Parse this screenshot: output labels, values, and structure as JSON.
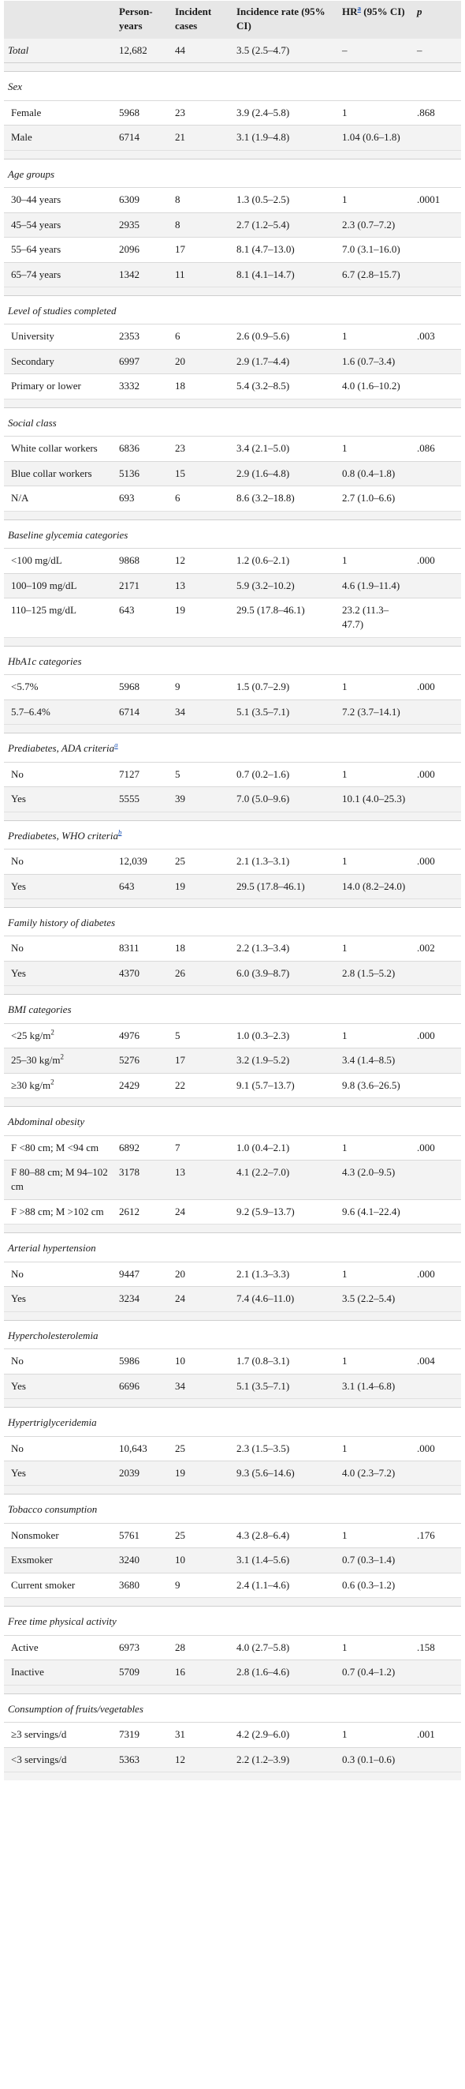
{
  "header": {
    "col_group": "",
    "col_person_years": "Person-years",
    "col_incident": "Incident cases",
    "col_rate": "Incidence rate (95% CI)",
    "col_hr": "HR",
    "col_hr_sup": "a",
    "col_hr_rest": " (95% CI)",
    "col_p": "p"
  },
  "total": {
    "label": "Total",
    "person_years": "12,682",
    "cases": "44",
    "rate": "3.5 (2.5–4.7)",
    "hr": "–",
    "p": "–"
  },
  "sections": [
    {
      "title": "Sex",
      "rows": [
        {
          "label": "Female",
          "person_years": "5968",
          "cases": "23",
          "rate": "3.9 (2.4–5.8)",
          "hr": "1",
          "p": ".868"
        },
        {
          "label": "Male",
          "person_years": "6714",
          "cases": "21",
          "rate": "3.1 (1.9–4.8)",
          "hr": "1.04 (0.6–1.8)",
          "p": ""
        }
      ]
    },
    {
      "title": "Age groups",
      "rows": [
        {
          "label": "30–44 years",
          "person_years": "6309",
          "cases": "8",
          "rate": "1.3 (0.5–2.5)",
          "hr": "1",
          "p": ".0001"
        },
        {
          "label": "45–54 years",
          "person_years": "2935",
          "cases": "8",
          "rate": "2.7 (1.2–5.4)",
          "hr": "2.3 (0.7–7.2)",
          "p": ""
        },
        {
          "label": "55–64 years",
          "person_years": "2096",
          "cases": "17",
          "rate": "8.1 (4.7–13.0)",
          "hr": "7.0 (3.1–16.0)",
          "p": ""
        },
        {
          "label": "65–74 years",
          "person_years": "1342",
          "cases": "11",
          "rate": "8.1 (4.1–14.7)",
          "hr": "6.7 (2.8–15.7)",
          "p": ""
        }
      ]
    },
    {
      "title": "Level of studies completed",
      "rows": [
        {
          "label": "University",
          "person_years": "2353",
          "cases": "6",
          "rate": "2.6 (0.9–5.6)",
          "hr": "1",
          "p": ".003"
        },
        {
          "label": "Secondary",
          "person_years": "6997",
          "cases": "20",
          "rate": "2.9 (1.7–4.4)",
          "hr": "1.6 (0.7–3.4)",
          "p": ""
        },
        {
          "label": "Primary or lower",
          "person_years": "3332",
          "cases": "18",
          "rate": "5.4 (3.2–8.5)",
          "hr": "4.0 (1.6–10.2)",
          "p": ""
        }
      ]
    },
    {
      "title": "Social class",
      "rows": [
        {
          "label": "White collar workers",
          "person_years": "6836",
          "cases": "23",
          "rate": "3.4 (2.1–5.0)",
          "hr": "1",
          "p": ".086"
        },
        {
          "label": "Blue collar workers",
          "person_years": "5136",
          "cases": "15",
          "rate": "2.9 (1.6–4.8)",
          "hr": "0.8 (0.4–1.8)",
          "p": ""
        },
        {
          "label": "N/A",
          "person_years": "693",
          "cases": "6",
          "rate": "8.6 (3.2–18.8)",
          "hr": "2.7 (1.0–6.6)",
          "p": ""
        }
      ]
    },
    {
      "title": "Baseline glycemia categories",
      "rows": [
        {
          "label": "<100 mg/dL",
          "person_years": "9868",
          "cases": "12",
          "rate": "1.2 (0.6–2.1)",
          "hr": "1",
          "p": ".000"
        },
        {
          "label": "100–109 mg/dL",
          "person_years": "2171",
          "cases": "13",
          "rate": "5.9 (3.2–10.2)",
          "hr": "4.6 (1.9–11.4)",
          "p": ""
        },
        {
          "label": "110–125 mg/dL",
          "person_years": "643",
          "cases": "19",
          "rate": "29.5 (17.8–46.1)",
          "hr": "23.2 (11.3–47.7)",
          "p": ""
        }
      ]
    },
    {
      "title": "HbA1c categories",
      "rows": [
        {
          "label": "<5.7%",
          "person_years": "5968",
          "cases": "9",
          "rate": "1.5 (0.7–2.9)",
          "hr": "1",
          "p": ".000"
        },
        {
          "label": "5.7–6.4%",
          "person_years": "6714",
          "cases": "34",
          "rate": "5.1 (3.5–7.1)",
          "hr": "7.2 (3.7–14.1)",
          "p": ""
        }
      ]
    },
    {
      "title": "Prediabetes, ADA criteria",
      "title_sup": "a",
      "rows": [
        {
          "label": "No",
          "person_years": "7127",
          "cases": "5",
          "rate": "0.7 (0.2–1.6)",
          "hr": "1",
          "p": ".000"
        },
        {
          "label": "Yes",
          "person_years": "5555",
          "cases": "39",
          "rate": "7.0 (5.0–9.6)",
          "hr": "10.1 (4.0–25.3)",
          "p": ""
        }
      ]
    },
    {
      "title": "Prediabetes, WHO criteria",
      "title_sup": "b",
      "rows": [
        {
          "label": "No",
          "person_years": "12,039",
          "cases": "25",
          "rate": "2.1 (1.3–3.1)",
          "hr": "1",
          "p": ".000"
        },
        {
          "label": "Yes",
          "person_years": "643",
          "cases": "19",
          "rate": "29.5 (17.8–46.1)",
          "hr": "14.0 (8.2–24.0)",
          "p": ""
        }
      ]
    },
    {
      "title": "Family history of diabetes",
      "rows": [
        {
          "label": "No",
          "person_years": "8311",
          "cases": "18",
          "rate": "2.2 (1.3–3.4)",
          "hr": "1",
          "p": ".002"
        },
        {
          "label": "Yes",
          "person_years": "4370",
          "cases": "26",
          "rate": "6.0 (3.9–8.7)",
          "hr": "2.8 (1.5–5.2)",
          "p": ""
        }
      ]
    },
    {
      "title": "BMI categories",
      "rows": [
        {
          "label": "<25 kg/m",
          "label_sup": "2",
          "person_years": "4976",
          "cases": "5",
          "rate": "1.0 (0.3–2.3)",
          "hr": "1",
          "p": ".000"
        },
        {
          "label": "25–30 kg/m",
          "label_sup": "2",
          "person_years": "5276",
          "cases": "17",
          "rate": "3.2 (1.9–5.2)",
          "hr": "3.4 (1.4–8.5)",
          "p": ""
        },
        {
          "label": "≥30 kg/m",
          "label_sup": "2",
          "person_years": "2429",
          "cases": "22",
          "rate": "9.1 (5.7–13.7)",
          "hr": "9.8 (3.6–26.5)",
          "p": ""
        }
      ]
    },
    {
      "title": "Abdominal obesity",
      "rows": [
        {
          "label": "F <80 cm; M <94 cm",
          "person_years": "6892",
          "cases": "7",
          "rate": "1.0 (0.4–2.1)",
          "hr": "1",
          "p": ".000"
        },
        {
          "label": "F 80–88 cm; M 94–102 cm",
          "person_years": "3178",
          "cases": "13",
          "rate": "4.1 (2.2–7.0)",
          "hr": "4.3 (2.0–9.5)",
          "p": ""
        },
        {
          "label": "F >88 cm; M >102 cm",
          "person_years": "2612",
          "cases": "24",
          "rate": "9.2 (5.9–13.7)",
          "hr": "9.6 (4.1–22.4)",
          "p": ""
        }
      ]
    },
    {
      "title": "Arterial hypertension",
      "rows": [
        {
          "label": "No",
          "person_years": "9447",
          "cases": "20",
          "rate": "2.1 (1.3–3.3)",
          "hr": "1",
          "p": ".000"
        },
        {
          "label": "Yes",
          "person_years": "3234",
          "cases": "24",
          "rate": "7.4 (4.6–11.0)",
          "hr": "3.5 (2.2–5.4)",
          "p": ""
        }
      ]
    },
    {
      "title": "Hypercholesterolemia",
      "rows": [
        {
          "label": "No",
          "person_years": "5986",
          "cases": "10",
          "rate": "1.7 (0.8–3.1)",
          "hr": "1",
          "p": ".004"
        },
        {
          "label": "Yes",
          "person_years": "6696",
          "cases": "34",
          "rate": "5.1 (3.5–7.1)",
          "hr": "3.1 (1.4–6.8)",
          "p": ""
        }
      ]
    },
    {
      "title": "Hypertriglyceridemia",
      "rows": [
        {
          "label": "No",
          "person_years": "10,643",
          "cases": "25",
          "rate": "2.3 (1.5–3.5)",
          "hr": "1",
          "p": ".000"
        },
        {
          "label": "Yes",
          "person_years": "2039",
          "cases": "19",
          "rate": "9.3 (5.6–14.6)",
          "hr": "4.0 (2.3–7.2)",
          "p": ""
        }
      ]
    },
    {
      "title": "Tobacco consumption",
      "rows": [
        {
          "label": "Nonsmoker",
          "person_years": "5761",
          "cases": "25",
          "rate": "4.3 (2.8–6.4)",
          "hr": "1",
          "p": ".176"
        },
        {
          "label": "Exsmoker",
          "person_years": "3240",
          "cases": "10",
          "rate": "3.1 (1.4–5.6)",
          "hr": "0.7 (0.3–1.4)",
          "p": ""
        },
        {
          "label": "Current smoker",
          "person_years": "3680",
          "cases": "9",
          "rate": "2.4 (1.1–4.6)",
          "hr": "0.6 (0.3–1.2)",
          "p": ""
        }
      ]
    },
    {
      "title": "Free time physical activity",
      "rows": [
        {
          "label": "Active",
          "person_years": "6973",
          "cases": "28",
          "rate": "4.0 (2.7–5.8)",
          "hr": "1",
          "p": ".158"
        },
        {
          "label": "Inactive",
          "person_years": "5709",
          "cases": "16",
          "rate": "2.8 (1.6–4.6)",
          "hr": "0.7 (0.4–1.2)",
          "p": ""
        }
      ]
    },
    {
      "title": "Consumption of fruits/vegetables",
      "rows": [
        {
          "label": "≥3 servings/d",
          "person_years": "7319",
          "cases": "31",
          "rate": "4.2 (2.9–6.0)",
          "hr": "1",
          "p": ".001"
        },
        {
          "label": "<3 servings/d",
          "person_years": "5363",
          "cases": "12",
          "rate": "2.2 (1.2–3.9)",
          "hr": "0.3 (0.1–0.6)",
          "p": ""
        }
      ]
    }
  ]
}
